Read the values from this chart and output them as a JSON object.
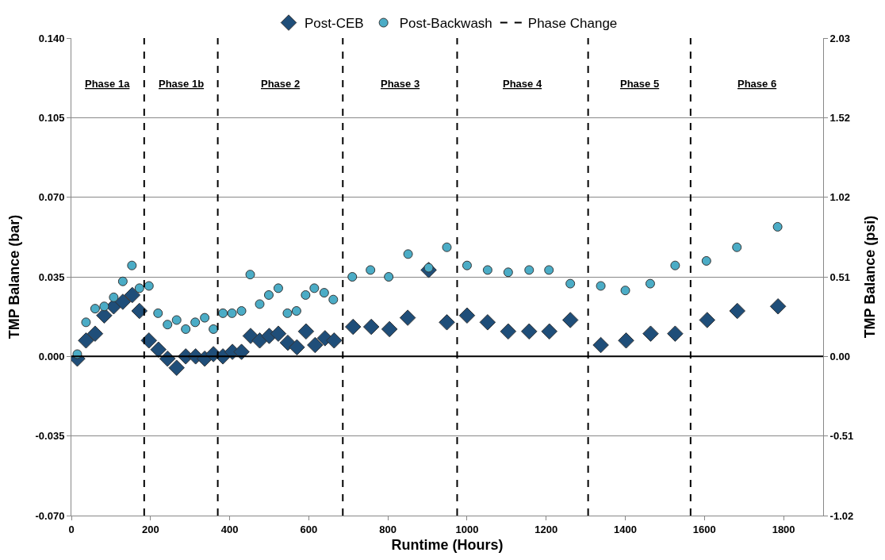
{
  "chart_data": {
    "type": "scatter",
    "xlabel": "Runtime (Hours)",
    "ylabel": "TMP Balance (bar)",
    "y2label": "TMP Balance (psi)",
    "xlim": [
      0,
      1900
    ],
    "xticks": [
      0,
      200,
      400,
      600,
      800,
      1000,
      1200,
      1400,
      1600,
      1800
    ],
    "ylim": [
      -0.07,
      0.14
    ],
    "yticks": [
      {
        "value": -0.07,
        "label": "-0.070"
      },
      {
        "value": -0.035,
        "label": "-0.035"
      },
      {
        "value": 0,
        "label": "0.000"
      },
      {
        "value": 0.035,
        "label": "0.035"
      },
      {
        "value": 0.07,
        "label": "0.070"
      },
      {
        "value": 0.105,
        "label": "0.105"
      },
      {
        "value": 0.14,
        "label": "0.140"
      }
    ],
    "y2lim": [
      -1.015,
      2.03
    ],
    "y2ticks": [
      {
        "value": -1.015,
        "label": "-1.02"
      },
      {
        "value": -0.5075,
        "label": "-0.51"
      },
      {
        "value": 0,
        "label": "0.00"
      },
      {
        "value": 0.5075,
        "label": "0.51"
      },
      {
        "value": 1.015,
        "label": "1.02"
      },
      {
        "value": 1.5225,
        "label": "1.52"
      },
      {
        "value": 2.03,
        "label": "2.03"
      }
    ],
    "grid": "y",
    "legend": "top",
    "series": [
      {
        "name": "Post-CEB",
        "color": "#1f4e79",
        "marker": "diamond",
        "x": [
          15,
          37,
          60,
          83,
          107,
          130,
          154,
          172,
          196,
          220,
          243,
          266,
          289,
          314,
          337,
          359,
          383,
          407,
          430,
          453,
          476,
          500,
          523,
          547,
          570,
          593,
          616,
          641,
          664,
          712,
          758,
          804,
          850,
          903,
          949,
          1000,
          1052,
          1104,
          1157,
          1208,
          1261,
          1338,
          1402,
          1464,
          1526,
          1607,
          1683,
          1786
        ],
        "values": [
          -0.001,
          0.007,
          0.01,
          0.018,
          0.022,
          0.024,
          0.027,
          0.02,
          0.007,
          0.003,
          -0.001,
          -0.005,
          0.0,
          0.0,
          -0.001,
          0.001,
          0.0,
          0.002,
          0.002,
          0.009,
          0.007,
          0.009,
          0.01,
          0.006,
          0.004,
          0.011,
          0.005,
          0.008,
          0.007,
          0.013,
          0.013,
          0.012,
          0.017,
          0.038,
          0.015,
          0.018,
          0.015,
          0.011,
          0.011,
          0.011,
          0.016,
          0.005,
          0.007,
          0.01,
          0.01,
          0.016,
          0.02,
          0.022
        ]
      },
      {
        "name": "Post-Backwash",
        "color": "#4bacc6",
        "marker": "circle",
        "x": [
          15,
          37,
          60,
          83,
          107,
          130,
          153,
          172,
          196,
          219,
          243,
          266,
          289,
          313,
          337,
          359,
          383,
          406,
          430,
          452,
          476,
          499,
          523,
          546,
          569,
          592,
          614,
          639,
          662,
          710,
          756,
          802,
          851,
          903,
          949,
          1000,
          1052,
          1104,
          1157,
          1207,
          1261,
          1338,
          1400,
          1463,
          1526,
          1605,
          1682,
          1785
        ],
        "values": [
          0.001,
          0.015,
          0.021,
          0.022,
          0.026,
          0.033,
          0.04,
          0.03,
          0.031,
          0.019,
          0.014,
          0.016,
          0.012,
          0.015,
          0.017,
          0.012,
          0.019,
          0.019,
          0.02,
          0.036,
          0.023,
          0.027,
          0.03,
          0.019,
          0.02,
          0.027,
          0.03,
          0.028,
          0.025,
          0.035,
          0.038,
          0.035,
          0.045,
          0.039,
          0.048,
          0.04,
          0.038,
          0.037,
          0.038,
          0.038,
          0.032,
          0.031,
          0.029,
          0.032,
          0.04,
          0.042,
          0.048,
          0.057
        ]
      }
    ],
    "ref_lines": [
      {
        "axis": "y",
        "value": 0,
        "color": "#000000",
        "line_style": "solid"
      },
      {
        "axis": "x",
        "value": 184,
        "label": "Phase Change",
        "color": "#000000",
        "line_style": "dashed"
      },
      {
        "axis": "x",
        "value": 370,
        "color": "#000000",
        "line_style": "dashed"
      },
      {
        "axis": "x",
        "value": 686,
        "color": "#000000",
        "line_style": "dashed"
      },
      {
        "axis": "x",
        "value": 975,
        "color": "#000000",
        "line_style": "dashed"
      },
      {
        "axis": "x",
        "value": 1306,
        "color": "#000000",
        "line_style": "dashed"
      },
      {
        "axis": "x",
        "value": 1565,
        "color": "#000000",
        "line_style": "dashed"
      }
    ],
    "annotations": [
      "Phase 1a",
      "Phase 1b",
      "Phase 2",
      "Phase 3",
      "Phase 4",
      "Phase 5",
      "Phase 6"
    ]
  }
}
